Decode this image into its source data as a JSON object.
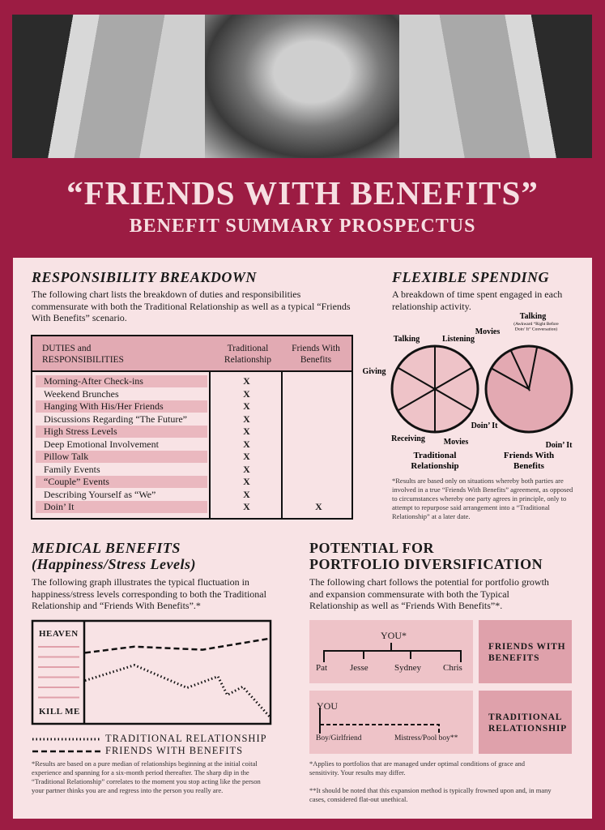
{
  "header": {
    "title": "“FRIENDS WITH BENEFITS”",
    "subtitle": "BENEFIT SUMMARY PROSPECTUS"
  },
  "colors": {
    "crimson": "#9c1c43",
    "panel": "#f8e3e5",
    "pink": "#e2aab3",
    "pie_fill": "#e7b3ba"
  },
  "responsibility": {
    "heading": "RESPONSIBILITY BREAKDOWN",
    "intro": "The following chart lists the breakdown of duties and responsibilities commensurate with both the Traditional Relationship as well as a typical “Friends With Benefits” scenario.",
    "col_duties": "DUTIES and RESPONSIBILITIES",
    "col_traditional": "Traditional Relationship",
    "col_fwb": "Friends With Benefits",
    "mark": "X",
    "rows": [
      {
        "label": "Morning-After Check-ins",
        "traditional": true,
        "fwb": false
      },
      {
        "label": "Weekend Brunches",
        "traditional": true,
        "fwb": false
      },
      {
        "label": "Hanging With His/Her Friends",
        "traditional": true,
        "fwb": false
      },
      {
        "label": "Discussions Regarding “The Future”",
        "traditional": true,
        "fwb": false
      },
      {
        "label": "High Stress Levels",
        "traditional": true,
        "fwb": false
      },
      {
        "label": "Deep Emotional Involvement",
        "traditional": true,
        "fwb": false
      },
      {
        "label": "Pillow Talk",
        "traditional": true,
        "fwb": false
      },
      {
        "label": "Family Events",
        "traditional": true,
        "fwb": false
      },
      {
        "label": "“Couple” Events",
        "traditional": true,
        "fwb": false
      },
      {
        "label": "Describing Yourself as “We”",
        "traditional": true,
        "fwb": false
      },
      {
        "label": "Doin’ It",
        "traditional": true,
        "fwb": true
      }
    ]
  },
  "spending": {
    "heading": "FLEXIBLE SPENDING",
    "intro": "A breakdown of time spent engaged in each relationship activity.",
    "note": "*Results are based only on situations whereby both parties are involved in a true “Friends With Benefits” agreement, as opposed to circumstances whereby one party agrees in principle, only to attempt to repurpose said arrangement into a “Traditional Relationship” at a later date."
  },
  "medical": {
    "heading1": "MEDICAL BENEFITS",
    "heading2": "(Happiness/Stress Levels)",
    "intro": "The following graph illustrates the typical fluctuation in happiness/stress levels corresponding to both the Traditional Relationship and “Friends With Benefits”.*",
    "note": "*Results are based on a pure median of relationships beginning at the initial coital experience and spanning for a six-month period thereafter. The sharp dip in the “Traditional Relationship” correlates to the moment you stop acting like the person your partner thinks you are and regress into the person you really are."
  },
  "portfolio": {
    "heading1": "POTENTIAL FOR",
    "heading2": "PORTFOLIO DIVERSIFICATION",
    "intro": "The following chart follows the potential for portfolio growth and expansion commensurate with both the Typical Relationship as well as “Friends With Benefits”*.",
    "fwb": {
      "root": "YOU*",
      "children": [
        "Pat",
        "Jesse",
        "Sydney",
        "Chris"
      ],
      "label": "FRIENDS WITH BENEFITS"
    },
    "traditional": {
      "root": "YOU",
      "children": [
        "Boy/Girlfriend",
        "Mistress/Pool boy**"
      ],
      "label": "TRADITIONAL RELATIONSHIP"
    },
    "note1": "*Applies to portfolios that are managed under optimal conditions of grace and sensitivity. Your results may differ.",
    "note2": "**It should be noted that this expansion method is typically frowned upon and, in many cases, considered flat-out unethical."
  },
  "chart_data": [
    {
      "type": "pie",
      "title": "Traditional Relationship",
      "slices": [
        {
          "label": "Listening",
          "value": 16.7
        },
        {
          "label": "Doin’ It",
          "value": 16.7
        },
        {
          "label": "Movies",
          "value": 16.7
        },
        {
          "label": "Receiving",
          "value": 16.7
        },
        {
          "label": "Giving",
          "value": 16.7
        },
        {
          "label": "Talking",
          "value": 16.7
        }
      ]
    },
    {
      "type": "pie",
      "title": "Friends With Benefits",
      "slices": [
        {
          "label": "Doin’ It",
          "value": 80
        },
        {
          "label": "Movies",
          "value": 10
        },
        {
          "label": "Talking",
          "value": 10,
          "sublabel": "(Awkward “Right Before Doin’ It” Conversation)"
        }
      ]
    },
    {
      "type": "line",
      "ylabel_top": "HEAVEN",
      "ylabel_bottom": "KILL ME",
      "xlim": [
        0,
        6
      ],
      "ylim": [
        0,
        100
      ],
      "grid": false,
      "legend": "bottom",
      "series": [
        {
          "name": "TRADITIONAL RELATIONSHIP",
          "style": "dotted",
          "x": [
            0,
            1.6,
            3.3,
            4.3,
            4.6,
            5.1,
            6
          ],
          "y": [
            42,
            57,
            35,
            46,
            28,
            36,
            6
          ]
        },
        {
          "name": "FRIENDS WITH BENEFITS",
          "style": "dashed",
          "x": [
            0,
            1.6,
            3.8,
            6
          ],
          "y": [
            69,
            75,
            72,
            83
          ]
        }
      ]
    }
  ]
}
